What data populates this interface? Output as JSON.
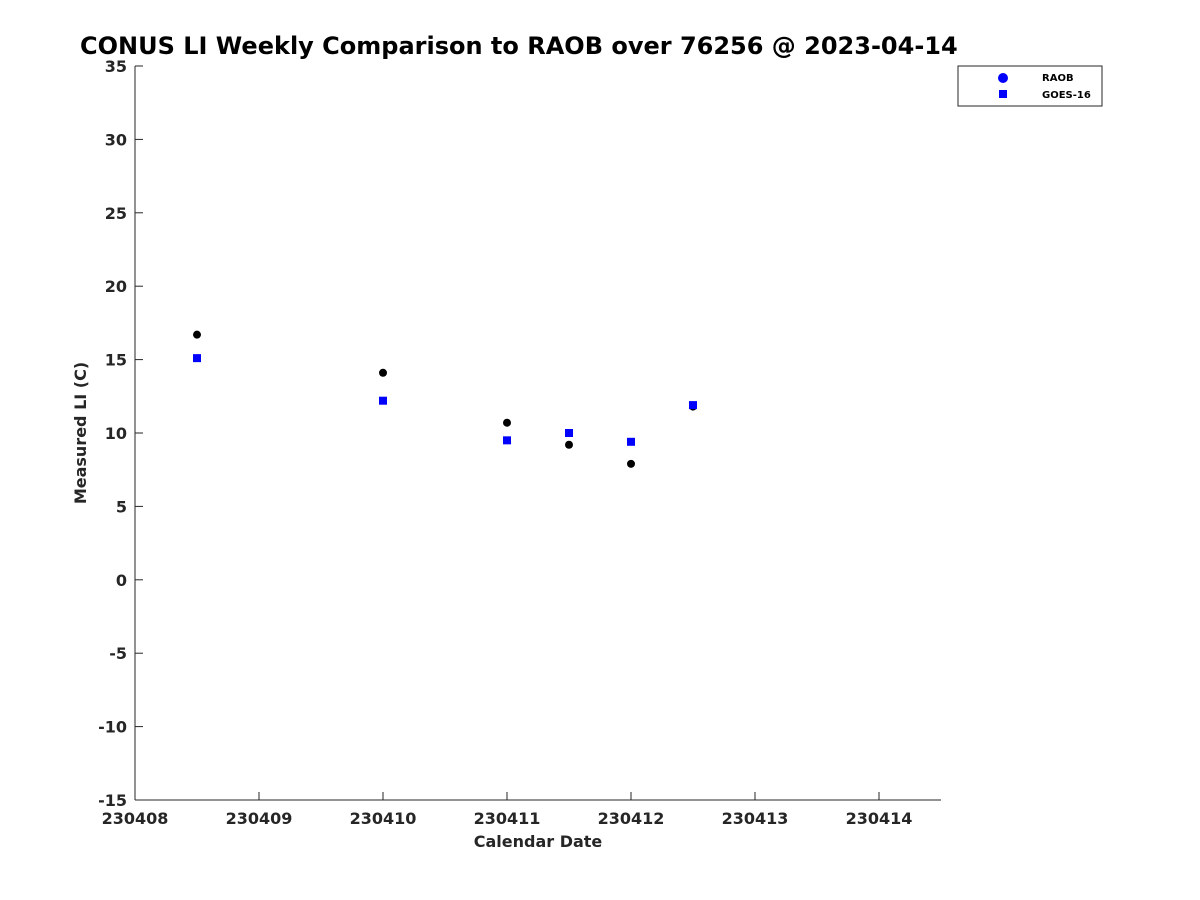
{
  "chart_data": {
    "type": "scatter",
    "title": "CONUS LI Weekly Comparison to RAOB over 76256 @ 2023-04-14",
    "xlabel": "Calendar Date",
    "ylabel": "Measured LI (C)",
    "xlim": [
      "230408",
      "230414.5"
    ],
    "ylim": [
      -15,
      35
    ],
    "x_ticks": [
      "230408",
      "230409",
      "230410",
      "230411",
      "230412",
      "230413",
      "230414"
    ],
    "y_ticks": [
      "35",
      "30",
      "25",
      "20",
      "15",
      "10",
      "5",
      "0",
      "-5",
      "-10",
      "-15"
    ],
    "grid": false,
    "legend_position": "top-right (outside)",
    "series": [
      {
        "name": "RAOB",
        "marker": "circle",
        "legend_color": "#0000ff",
        "color": "#000000",
        "points": [
          {
            "x": "230408.5",
            "y": 16.7
          },
          {
            "x": "230410",
            "y": 14.1
          },
          {
            "x": "230411",
            "y": 10.7
          },
          {
            "x": "230411.5",
            "y": 9.2
          },
          {
            "x": "230412",
            "y": 7.9
          },
          {
            "x": "230412.5",
            "y": 11.8
          }
        ]
      },
      {
        "name": "GOES-16",
        "marker": "square",
        "legend_color": "#0000ff",
        "color": "#0000ff",
        "points": [
          {
            "x": "230408.5",
            "y": 15.1
          },
          {
            "x": "230410",
            "y": 12.2
          },
          {
            "x": "230411",
            "y": 9.5
          },
          {
            "x": "230411.5",
            "y": 10.0
          },
          {
            "x": "230412",
            "y": 9.4
          },
          {
            "x": "230412.5",
            "y": 11.9
          }
        ]
      }
    ]
  }
}
